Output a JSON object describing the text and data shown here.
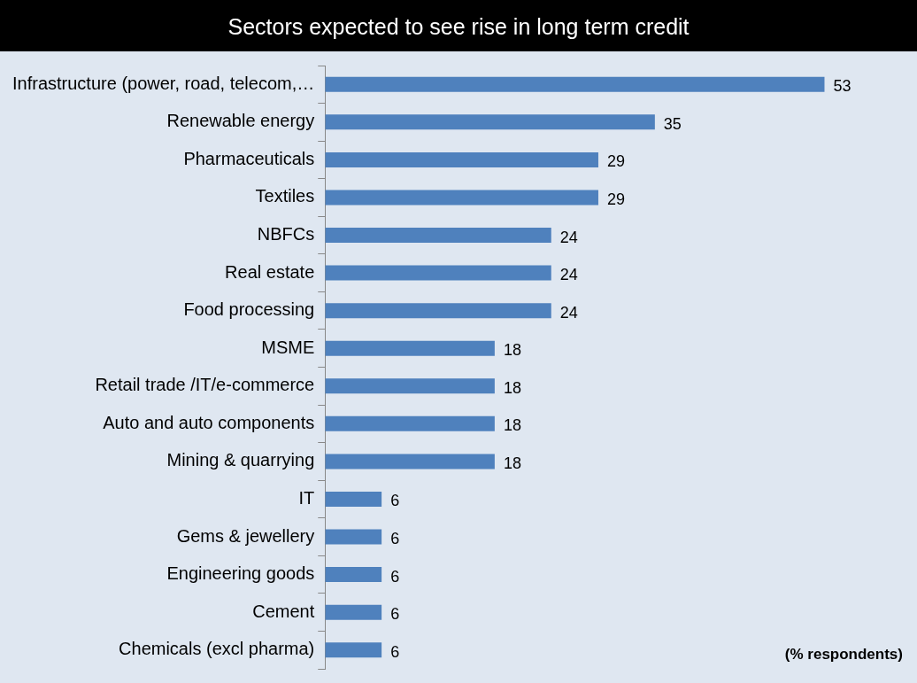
{
  "chart_data": {
    "type": "bar",
    "orientation": "horizontal",
    "title": "Sectors  expected to see rise in long term credit",
    "categories": [
      "Infrastructure (power, road, telecom,…",
      "Renewable energy",
      "Pharmaceuticals",
      "Textiles",
      "NBFCs",
      "Real estate",
      "Food processing",
      "MSME",
      "Retail trade /IT/e-commerce",
      "Auto and auto components",
      "Mining & quarrying",
      "IT",
      "Gems & jewellery",
      "Engineering goods",
      "Cement",
      "Chemicals (excl pharma)"
    ],
    "values": [
      53,
      35,
      29,
      29,
      24,
      24,
      24,
      18,
      18,
      18,
      18,
      6,
      6,
      6,
      6,
      6
    ],
    "color": "#4f81bd",
    "data_labels": true,
    "tick_labels": "y",
    "annotations": [
      "(% respondents)"
    ]
  }
}
